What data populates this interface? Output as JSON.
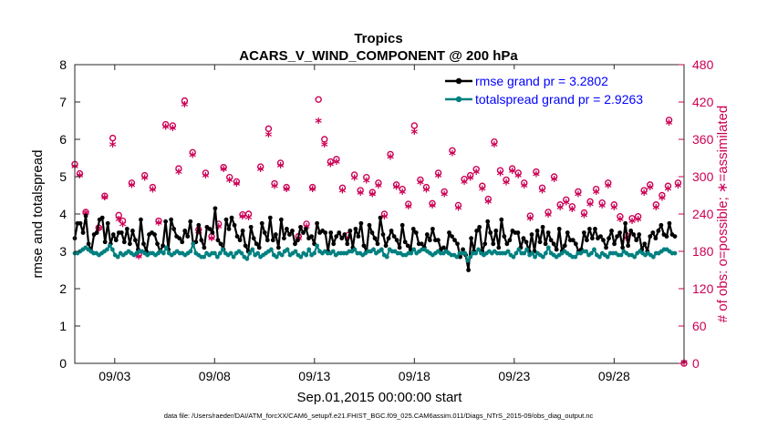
{
  "chart_data": {
    "type": "line",
    "title": "Tropics",
    "subtitle": "ACARS_V_WIND_COMPONENT @ 200 hPa",
    "xlabel": "Sep.01,2015 00:00:00 start",
    "ylabel_left": "rmse and totalspread",
    "ylabel_right": "# of obs: o=possible; ∗=assimilated",
    "ylim_left": [
      0,
      8
    ],
    "ylim_right": [
      0,
      480
    ],
    "yticks_left": [
      "0",
      "1",
      "2",
      "3",
      "4",
      "5",
      "6",
      "7",
      "8"
    ],
    "yticks_right": [
      "0",
      "60",
      "120",
      "180",
      "240",
      "300",
      "360",
      "420",
      "480"
    ],
    "xlim_days": [
      1.0,
      31.5
    ],
    "xtick_days": [
      3,
      8,
      13,
      18,
      23,
      28
    ],
    "xtick_labels": [
      "09/03",
      "09/08",
      "09/13",
      "09/18",
      "09/23",
      "09/28"
    ],
    "legend_location": "top-right",
    "series": [
      {
        "name": "rmse grand pr = 3.2802",
        "color": "#000000",
        "axis": "left",
        "values": [
          3.35,
          3.75,
          3.75,
          3.5,
          3.95,
          3.2,
          3.0,
          3.45,
          3.5,
          3.85,
          3.9,
          3.25,
          3.75,
          3.2,
          3.45,
          3.3,
          3.5,
          3.5,
          3.25,
          3.6,
          3.2,
          3.55,
          3.3,
          3.05,
          3.85,
          3.2,
          3.0,
          3.45,
          3.5,
          3.45,
          3.2,
          3.0,
          3.15,
          3.8,
          3.05,
          3.85,
          3.6,
          3.4,
          3.35,
          3.25,
          3.55,
          3.4,
          3.8,
          3.2,
          3.25,
          3.7,
          3.3,
          3.1,
          3.65,
          3.6,
          3.5,
          4.15,
          3.3,
          3.2,
          3.05,
          3.85,
          3.6,
          3.9,
          3.7,
          3.4,
          3.3,
          3.55,
          3.15,
          3.0,
          3.65,
          3.35,
          3.2,
          3.1,
          3.75,
          3.5,
          3.3,
          3.9,
          3.3,
          3.45,
          3.1,
          3.85,
          3.35,
          3.6,
          3.45,
          3.55,
          3.2,
          3.3,
          3.65,
          3.5,
          3.6,
          3.35,
          3.4,
          3.2,
          3.75,
          3.5,
          3.55,
          3.5,
          3.0,
          3.5,
          3.2,
          3.4,
          3.5,
          3.35,
          3.45,
          3.2,
          3.55,
          3.1,
          3.6,
          3.4,
          3.75,
          3.15,
          3.0,
          3.7,
          3.5,
          3.35,
          3.2,
          3.9,
          3.45,
          3.15,
          3.35,
          3.55,
          3.4,
          3.3,
          3.1,
          3.7,
          3.25,
          3.15,
          3.05,
          3.6,
          3.5,
          3.2,
          3.2,
          3.1,
          3.45,
          3.3,
          3.6,
          3.3,
          3.3,
          3.05,
          3.1,
          3.0,
          3.5,
          3.4,
          3.3,
          3.2,
          2.85,
          3.05,
          2.9,
          2.5,
          3.35,
          3.0,
          3.55,
          3.65,
          3.0,
          3.2,
          3.8,
          3.5,
          3.2,
          3.55,
          3.1,
          3.85,
          3.4,
          3.2,
          3.3,
          3.55,
          3.5,
          3.5,
          3.1,
          3.35,
          3.25,
          3.0,
          3.45,
          3.0,
          3.55,
          3.25,
          3.65,
          3.2,
          3.5,
          3.3,
          3.2,
          3.05,
          3.6,
          3.0,
          3.15,
          3.5,
          3.3,
          3.3,
          3.2,
          3.0,
          3.05,
          3.5,
          3.3,
          3.6,
          3.35,
          3.6,
          3.35,
          3.4,
          3.3,
          3.1,
          3.35,
          3.55,
          3.2,
          3.4,
          3.5,
          3.1,
          3.75,
          3.15,
          3.55,
          3.45,
          3.3,
          3.45,
          3.05,
          3.2,
          3.0,
          3.4,
          3.5,
          3.35,
          3.55,
          3.7,
          3.45,
          3.4,
          3.75,
          3.45,
          3.4
        ]
      },
      {
        "name": "totalspread grand pr = 2.9263",
        "color": "#008080",
        "axis": "left",
        "values": [
          2.95,
          2.95,
          3.0,
          3.05,
          3.1,
          3.05,
          3.0,
          2.95,
          2.95,
          2.9,
          2.95,
          3.0,
          3.05,
          3.15,
          3.05,
          2.9,
          2.85,
          2.95,
          2.9,
          2.95,
          3.0,
          2.95,
          2.9,
          2.95,
          3.0,
          3.0,
          2.95,
          2.9,
          2.95,
          2.95,
          2.9,
          2.95,
          3.0,
          2.95,
          3.1,
          2.95,
          2.9,
          2.95,
          3.0,
          2.95,
          2.95,
          2.9,
          2.95,
          3.0,
          3.2,
          2.95,
          2.9,
          2.85,
          2.85,
          2.95,
          2.9,
          2.95,
          2.95,
          2.85,
          2.95,
          3.05,
          2.95,
          2.9,
          2.95,
          2.85,
          2.95,
          3.0,
          2.95,
          2.85,
          2.8,
          2.95,
          3.05,
          2.9,
          2.95,
          2.85,
          2.9,
          2.95,
          3.0,
          3.05,
          2.9,
          2.85,
          2.95,
          2.9,
          3.0,
          3.05,
          2.9,
          2.95,
          3.0,
          2.9,
          2.85,
          2.95,
          2.9,
          3.05,
          2.9,
          2.95,
          3.15,
          3.0,
          2.95,
          3.0,
          2.95,
          2.95,
          3.0,
          2.9,
          2.95,
          2.95,
          2.95,
          2.95,
          3.0,
          3.0,
          3.05,
          2.95,
          2.95,
          2.9,
          2.95,
          3.0,
          3.0,
          3.05,
          2.95,
          3.0,
          3.05,
          2.9,
          2.85,
          3.05,
          3.0,
          3.0,
          2.95,
          2.95,
          2.9,
          2.9,
          2.95,
          2.95,
          3.05,
          2.95,
          3.0,
          3.05,
          3.05,
          3.0,
          2.95,
          2.9,
          2.95,
          3.0,
          2.95,
          2.95,
          3.0,
          2.95,
          2.9,
          2.9,
          2.85,
          2.95,
          2.95,
          2.95,
          2.75,
          2.85,
          2.95,
          2.95,
          3.05,
          2.95,
          2.9,
          2.95,
          3.0,
          2.95,
          3.0,
          2.95,
          2.95,
          2.95,
          2.95,
          3.0,
          2.9,
          2.85,
          2.95,
          3.05,
          2.95,
          2.95,
          3.05,
          2.9,
          2.95,
          2.85,
          2.95,
          2.9,
          2.85,
          2.95,
          3.1,
          2.95,
          2.9,
          2.85,
          2.9,
          2.95,
          3.0,
          2.95,
          2.9,
          2.85,
          2.85,
          2.95,
          2.95,
          3.0,
          3.0,
          2.9,
          2.95,
          3.05,
          2.9,
          2.85,
          2.95,
          2.9,
          2.85,
          2.95,
          2.95,
          2.95,
          2.9,
          2.9,
          3.0,
          2.95,
          2.9,
          2.9,
          2.85,
          2.95,
          3.0,
          2.95,
          2.9,
          2.95,
          2.9,
          2.85,
          2.95,
          2.95,
          3.0,
          3.05,
          3.05,
          3.0,
          2.95,
          2.95
        ]
      }
    ],
    "obs_possible": [
      {
        "day": 1.0,
        "n": 320
      },
      {
        "day": 1.25,
        "n": 305
      },
      {
        "day": 1.55,
        "n": 243
      },
      {
        "day": 2.2,
        "n": 218
      },
      {
        "day": 2.5,
        "n": 269
      },
      {
        "day": 2.9,
        "n": 362
      },
      {
        "day": 3.2,
        "n": 238
      },
      {
        "day": 3.4,
        "n": 229
      },
      {
        "day": 3.85,
        "n": 290
      },
      {
        "day": 4.2,
        "n": 175
      },
      {
        "day": 4.5,
        "n": 302
      },
      {
        "day": 4.9,
        "n": 283
      },
      {
        "day": 5.2,
        "n": 229
      },
      {
        "day": 5.55,
        "n": 384
      },
      {
        "day": 5.9,
        "n": 382
      },
      {
        "day": 6.2,
        "n": 313
      },
      {
        "day": 6.5,
        "n": 422
      },
      {
        "day": 6.9,
        "n": 339
      },
      {
        "day": 7.2,
        "n": 215
      },
      {
        "day": 7.55,
        "n": 306
      },
      {
        "day": 7.85,
        "n": 204
      },
      {
        "day": 8.2,
        "n": 224
      },
      {
        "day": 8.45,
        "n": 315
      },
      {
        "day": 8.75,
        "n": 299
      },
      {
        "day": 9.1,
        "n": 292
      },
      {
        "day": 9.4,
        "n": 239
      },
      {
        "day": 9.7,
        "n": 240
      },
      {
        "day": 10.3,
        "n": 316
      },
      {
        "day": 10.7,
        "n": 377
      },
      {
        "day": 11.0,
        "n": 289
      },
      {
        "day": 11.3,
        "n": 322
      },
      {
        "day": 11.6,
        "n": 283
      },
      {
        "day": 12.2,
        "n": 204
      },
      {
        "day": 12.6,
        "n": 224
      },
      {
        "day": 12.9,
        "n": 283
      },
      {
        "day": 13.2,
        "n": 424
      },
      {
        "day": 13.5,
        "n": 360
      },
      {
        "day": 13.8,
        "n": 324
      },
      {
        "day": 14.1,
        "n": 328
      },
      {
        "day": 14.4,
        "n": 282
      },
      {
        "day": 14.7,
        "n": 206
      },
      {
        "day": 15.0,
        "n": 303
      },
      {
        "day": 15.3,
        "n": 278
      },
      {
        "day": 15.6,
        "n": 299
      },
      {
        "day": 15.9,
        "n": 275
      },
      {
        "day": 16.2,
        "n": 290
      },
      {
        "day": 16.5,
        "n": 240
      },
      {
        "day": 16.8,
        "n": 336
      },
      {
        "day": 17.1,
        "n": 287
      },
      {
        "day": 17.4,
        "n": 280
      },
      {
        "day": 17.7,
        "n": 256
      },
      {
        "day": 18.0,
        "n": 382
      },
      {
        "day": 18.3,
        "n": 295
      },
      {
        "day": 18.6,
        "n": 283
      },
      {
        "day": 18.9,
        "n": 257
      },
      {
        "day": 19.2,
        "n": 306
      },
      {
        "day": 19.5,
        "n": 276
      },
      {
        "day": 19.9,
        "n": 342
      },
      {
        "day": 20.2,
        "n": 254
      },
      {
        "day": 20.5,
        "n": 296
      },
      {
        "day": 20.8,
        "n": 302
      },
      {
        "day": 21.1,
        "n": 312
      },
      {
        "day": 21.4,
        "n": 285
      },
      {
        "day": 21.7,
        "n": 264
      },
      {
        "day": 22.0,
        "n": 356
      },
      {
        "day": 22.3,
        "n": 310
      },
      {
        "day": 22.6,
        "n": 295
      },
      {
        "day": 22.9,
        "n": 313
      },
      {
        "day": 23.2,
        "n": 306
      },
      {
        "day": 23.5,
        "n": 290
      },
      {
        "day": 23.8,
        "n": 237
      },
      {
        "day": 24.1,
        "n": 308
      },
      {
        "day": 24.4,
        "n": 282
      },
      {
        "day": 24.7,
        "n": 243
      },
      {
        "day": 25.0,
        "n": 300
      },
      {
        "day": 25.3,
        "n": 255
      },
      {
        "day": 25.6,
        "n": 263
      },
      {
        "day": 25.9,
        "n": 252
      },
      {
        "day": 26.2,
        "n": 276
      },
      {
        "day": 26.5,
        "n": 242
      },
      {
        "day": 26.8,
        "n": 260
      },
      {
        "day": 27.1,
        "n": 280
      },
      {
        "day": 27.4,
        "n": 258
      },
      {
        "day": 27.7,
        "n": 290
      },
      {
        "day": 28.0,
        "n": 255
      },
      {
        "day": 28.3,
        "n": 236
      },
      {
        "day": 28.6,
        "n": 206
      },
      {
        "day": 28.9,
        "n": 233
      },
      {
        "day": 29.2,
        "n": 236
      },
      {
        "day": 29.5,
        "n": 278
      },
      {
        "day": 29.8,
        "n": 287
      },
      {
        "day": 30.1,
        "n": 255
      },
      {
        "day": 30.4,
        "n": 270
      },
      {
        "day": 30.7,
        "n": 285
      },
      {
        "day": 30.75,
        "n": 391
      },
      {
        "day": 31.2,
        "n": 290
      }
    ],
    "obs_assimilated": [
      {
        "day": 1.0,
        "n": 315
      },
      {
        "day": 1.25,
        "n": 300
      },
      {
        "day": 1.55,
        "n": 240
      },
      {
        "day": 2.2,
        "n": 215
      },
      {
        "day": 2.5,
        "n": 265
      },
      {
        "day": 2.9,
        "n": 350
      },
      {
        "day": 3.2,
        "n": 230
      },
      {
        "day": 3.4,
        "n": 222
      },
      {
        "day": 3.85,
        "n": 285
      },
      {
        "day": 4.2,
        "n": 170
      },
      {
        "day": 4.5,
        "n": 296
      },
      {
        "day": 4.9,
        "n": 277
      },
      {
        "day": 5.2,
        "n": 224
      },
      {
        "day": 5.55,
        "n": 378
      },
      {
        "day": 5.9,
        "n": 376
      },
      {
        "day": 6.2,
        "n": 306
      },
      {
        "day": 6.5,
        "n": 414
      },
      {
        "day": 6.9,
        "n": 333
      },
      {
        "day": 7.2,
        "n": 210
      },
      {
        "day": 7.55,
        "n": 300
      },
      {
        "day": 7.85,
        "n": 199
      },
      {
        "day": 8.2,
        "n": 218
      },
      {
        "day": 8.45,
        "n": 310
      },
      {
        "day": 8.75,
        "n": 293
      },
      {
        "day": 9.1,
        "n": 287
      },
      {
        "day": 9.4,
        "n": 234
      },
      {
        "day": 9.7,
        "n": 233
      },
      {
        "day": 10.3,
        "n": 310
      },
      {
        "day": 10.7,
        "n": 366
      },
      {
        "day": 11.0,
        "n": 283
      },
      {
        "day": 11.3,
        "n": 316
      },
      {
        "day": 11.6,
        "n": 278
      },
      {
        "day": 12.2,
        "n": 199
      },
      {
        "day": 12.6,
        "n": 218
      },
      {
        "day": 12.9,
        "n": 278
      },
      {
        "day": 13.2,
        "n": 388
      },
      {
        "day": 13.5,
        "n": 350
      },
      {
        "day": 13.8,
        "n": 318
      },
      {
        "day": 14.1,
        "n": 322
      },
      {
        "day": 14.4,
        "n": 276
      },
      {
        "day": 14.7,
        "n": 200
      },
      {
        "day": 15.0,
        "n": 296
      },
      {
        "day": 15.3,
        "n": 272
      },
      {
        "day": 15.6,
        "n": 292
      },
      {
        "day": 15.9,
        "n": 270
      },
      {
        "day": 16.2,
        "n": 284
      },
      {
        "day": 16.5,
        "n": 234
      },
      {
        "day": 16.8,
        "n": 330
      },
      {
        "day": 17.1,
        "n": 282
      },
      {
        "day": 17.4,
        "n": 274
      },
      {
        "day": 17.7,
        "n": 250
      },
      {
        "day": 18.0,
        "n": 370
      },
      {
        "day": 18.3,
        "n": 289
      },
      {
        "day": 18.6,
        "n": 277
      },
      {
        "day": 18.9,
        "n": 252
      },
      {
        "day": 19.2,
        "n": 300
      },
      {
        "day": 19.5,
        "n": 270
      },
      {
        "day": 19.9,
        "n": 336
      },
      {
        "day": 20.2,
        "n": 248
      },
      {
        "day": 20.5,
        "n": 290
      },
      {
        "day": 20.8,
        "n": 296
      },
      {
        "day": 21.1,
        "n": 306
      },
      {
        "day": 21.4,
        "n": 279
      },
      {
        "day": 21.7,
        "n": 258
      },
      {
        "day": 22.0,
        "n": 350
      },
      {
        "day": 22.3,
        "n": 304
      },
      {
        "day": 22.6,
        "n": 289
      },
      {
        "day": 22.9,
        "n": 307
      },
      {
        "day": 23.2,
        "n": 300
      },
      {
        "day": 23.5,
        "n": 284
      },
      {
        "day": 23.8,
        "n": 231
      },
      {
        "day": 24.1,
        "n": 302
      },
      {
        "day": 24.4,
        "n": 276
      },
      {
        "day": 24.7,
        "n": 237
      },
      {
        "day": 25.0,
        "n": 294
      },
      {
        "day": 25.3,
        "n": 249
      },
      {
        "day": 25.6,
        "n": 257
      },
      {
        "day": 25.9,
        "n": 246
      },
      {
        "day": 26.2,
        "n": 270
      },
      {
        "day": 26.5,
        "n": 236
      },
      {
        "day": 26.8,
        "n": 254
      },
      {
        "day": 27.1,
        "n": 274
      },
      {
        "day": 27.4,
        "n": 252
      },
      {
        "day": 27.7,
        "n": 284
      },
      {
        "day": 28.0,
        "n": 249
      },
      {
        "day": 28.3,
        "n": 230
      },
      {
        "day": 28.6,
        "n": 200
      },
      {
        "day": 28.9,
        "n": 227
      },
      {
        "day": 29.2,
        "n": 230
      },
      {
        "day": 29.5,
        "n": 272
      },
      {
        "day": 29.8,
        "n": 281
      },
      {
        "day": 30.1,
        "n": 249
      },
      {
        "day": 30.4,
        "n": 264
      },
      {
        "day": 30.7,
        "n": 279
      },
      {
        "day": 30.75,
        "n": 385
      },
      {
        "day": 31.2,
        "n": 284
      }
    ],
    "obs_color": "#cc0055"
  },
  "footer": {
    "datafile": "data file: /Users/raeder/DAI/ATM_forcXX/CAM6_setup/f.e21.FHIST_BGC.f09_025.CAM6assim.011/Diags_NTrS_2015-09/obs_diag_output.nc"
  }
}
